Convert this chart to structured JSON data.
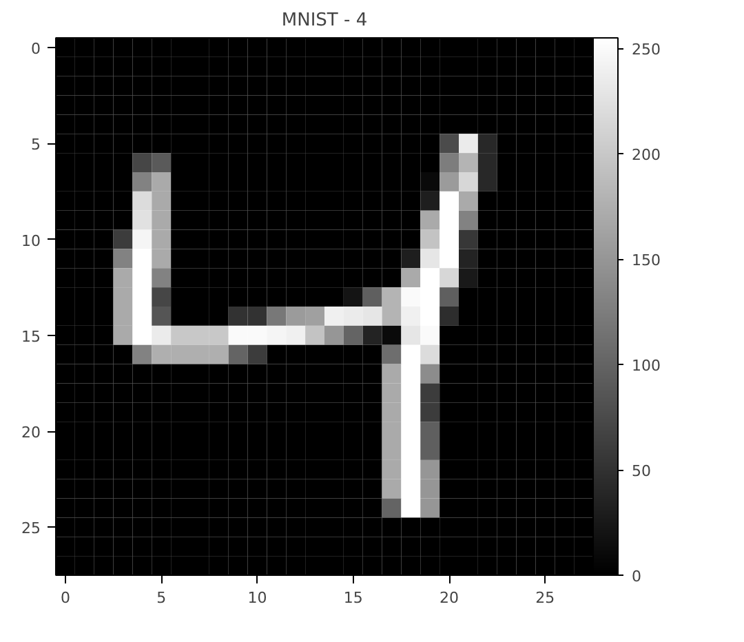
{
  "chart_data": {
    "type": "heatmap",
    "title": "MNIST - 4",
    "categories": [
      "0",
      null,
      null,
      null,
      null,
      "5",
      null,
      null,
      null,
      null,
      "10",
      null,
      null,
      null,
      null,
      "15",
      null,
      null,
      null,
      null,
      "20",
      null,
      null,
      null,
      null,
      "25",
      null,
      null
    ],
    "y_categories": [
      "0",
      null,
      null,
      null,
      null,
      "5",
      null,
      null,
      null,
      null,
      "10",
      null,
      null,
      null,
      null,
      "15",
      null,
      null,
      null,
      null,
      "20",
      null,
      null,
      null,
      null,
      "25",
      null,
      null
    ],
    "cells": [
      [
        0,
        0,
        0,
        0,
        0,
        0,
        0,
        0,
        0,
        0,
        0,
        0,
        0,
        0,
        0,
        0,
        0,
        0,
        0,
        0,
        0,
        0,
        0,
        0,
        0,
        0,
        0,
        0
      ],
      [
        0,
        0,
        0,
        0,
        0,
        0,
        0,
        0,
        0,
        0,
        0,
        0,
        0,
        0,
        0,
        0,
        0,
        0,
        0,
        0,
        0,
        0,
        0,
        0,
        0,
        0,
        0,
        0
      ],
      [
        0,
        0,
        0,
        0,
        0,
        0,
        0,
        0,
        0,
        0,
        0,
        0,
        0,
        0,
        0,
        0,
        0,
        0,
        0,
        0,
        0,
        0,
        0,
        0,
        0,
        0,
        0,
        0
      ],
      [
        0,
        0,
        0,
        0,
        0,
        0,
        0,
        0,
        0,
        0,
        0,
        0,
        0,
        0,
        0,
        0,
        0,
        0,
        0,
        0,
        0,
        0,
        0,
        0,
        0,
        0,
        0,
        0
      ],
      [
        0,
        0,
        0,
        0,
        0,
        0,
        0,
        0,
        0,
        0,
        0,
        0,
        0,
        0,
        0,
        0,
        0,
        0,
        0,
        0,
        0,
        0,
        0,
        0,
        0,
        0,
        0,
        0
      ],
      [
        0,
        0,
        0,
        0,
        0,
        0,
        0,
        0,
        0,
        0,
        0,
        0,
        0,
        0,
        0,
        0,
        0,
        0,
        0,
        0,
        75,
        235,
        40,
        0,
        0,
        0,
        0,
        0
      ],
      [
        0,
        0,
        0,
        0,
        70,
        90,
        0,
        0,
        0,
        0,
        0,
        0,
        0,
        0,
        0,
        0,
        0,
        0,
        0,
        0,
        125,
        180,
        40,
        0,
        0,
        0,
        0,
        0
      ],
      [
        0,
        0,
        0,
        0,
        130,
        170,
        0,
        0,
        0,
        0,
        0,
        0,
        0,
        0,
        0,
        0,
        0,
        0,
        0,
        10,
        155,
        215,
        40,
        0,
        0,
        0,
        0,
        0
      ],
      [
        0,
        0,
        0,
        0,
        220,
        170,
        0,
        0,
        0,
        0,
        0,
        0,
        0,
        0,
        0,
        0,
        0,
        0,
        0,
        30,
        255,
        170,
        0,
        0,
        0,
        0,
        0,
        0
      ],
      [
        0,
        0,
        0,
        0,
        225,
        170,
        0,
        0,
        0,
        0,
        0,
        0,
        0,
        0,
        0,
        0,
        0,
        0,
        0,
        170,
        255,
        130,
        0,
        0,
        0,
        0,
        0,
        0
      ],
      [
        0,
        0,
        0,
        60,
        245,
        170,
        0,
        0,
        0,
        0,
        0,
        0,
        0,
        0,
        0,
        0,
        0,
        0,
        0,
        195,
        255,
        55,
        0,
        0,
        0,
        0,
        0,
        0
      ],
      [
        0,
        0,
        0,
        130,
        255,
        170,
        0,
        0,
        0,
        0,
        0,
        0,
        0,
        0,
        0,
        0,
        0,
        0,
        30,
        230,
        255,
        35,
        0,
        0,
        0,
        0,
        0,
        0
      ],
      [
        0,
        0,
        0,
        170,
        255,
        130,
        0,
        0,
        0,
        0,
        0,
        0,
        0,
        0,
        0,
        0,
        0,
        0,
        170,
        255,
        215,
        25,
        0,
        0,
        0,
        0,
        0,
        0
      ],
      [
        0,
        0,
        0,
        170,
        255,
        70,
        0,
        0,
        0,
        0,
        0,
        0,
        0,
        0,
        0,
        20,
        95,
        180,
        250,
        255,
        95,
        0,
        0,
        0,
        0,
        0,
        0,
        0
      ],
      [
        0,
        0,
        0,
        170,
        255,
        85,
        0,
        0,
        0,
        50,
        50,
        120,
        155,
        160,
        240,
        235,
        230,
        180,
        240,
        255,
        45,
        0,
        0,
        0,
        0,
        0,
        0,
        0
      ],
      [
        0,
        0,
        0,
        170,
        255,
        235,
        200,
        200,
        200,
        250,
        250,
        245,
        240,
        195,
        150,
        100,
        35,
        10,
        230,
        250,
        0,
        0,
        0,
        0,
        0,
        0,
        0,
        0
      ],
      [
        0,
        0,
        0,
        0,
        130,
        175,
        175,
        175,
        175,
        100,
        60,
        0,
        0,
        0,
        0,
        0,
        0,
        110,
        255,
        220,
        0,
        0,
        0,
        0,
        0,
        0,
        0,
        0
      ],
      [
        0,
        0,
        0,
        0,
        0,
        0,
        0,
        0,
        0,
        0,
        0,
        0,
        0,
        0,
        0,
        0,
        0,
        170,
        255,
        140,
        0,
        0,
        0,
        0,
        0,
        0,
        0,
        0
      ],
      [
        0,
        0,
        0,
        0,
        0,
        0,
        0,
        0,
        0,
        0,
        0,
        0,
        0,
        0,
        0,
        0,
        0,
        170,
        255,
        60,
        0,
        0,
        0,
        0,
        0,
        0,
        0,
        0
      ],
      [
        0,
        0,
        0,
        0,
        0,
        0,
        0,
        0,
        0,
        0,
        0,
        0,
        0,
        0,
        0,
        0,
        0,
        170,
        255,
        60,
        0,
        0,
        0,
        0,
        0,
        0,
        0,
        0
      ],
      [
        0,
        0,
        0,
        0,
        0,
        0,
        0,
        0,
        0,
        0,
        0,
        0,
        0,
        0,
        0,
        0,
        0,
        170,
        255,
        95,
        0,
        0,
        0,
        0,
        0,
        0,
        0,
        0
      ],
      [
        0,
        0,
        0,
        0,
        0,
        0,
        0,
        0,
        0,
        0,
        0,
        0,
        0,
        0,
        0,
        0,
        0,
        170,
        255,
        95,
        0,
        0,
        0,
        0,
        0,
        0,
        0,
        0
      ],
      [
        0,
        0,
        0,
        0,
        0,
        0,
        0,
        0,
        0,
        0,
        0,
        0,
        0,
        0,
        0,
        0,
        0,
        170,
        255,
        150,
        0,
        0,
        0,
        0,
        0,
        0,
        0,
        0
      ],
      [
        0,
        0,
        0,
        0,
        0,
        0,
        0,
        0,
        0,
        0,
        0,
        0,
        0,
        0,
        0,
        0,
        0,
        170,
        255,
        150,
        0,
        0,
        0,
        0,
        0,
        0,
        0,
        0
      ],
      [
        0,
        0,
        0,
        0,
        0,
        0,
        0,
        0,
        0,
        0,
        0,
        0,
        0,
        0,
        0,
        0,
        0,
        100,
        255,
        150,
        0,
        0,
        0,
        0,
        0,
        0,
        0,
        0
      ],
      [
        0,
        0,
        0,
        0,
        0,
        0,
        0,
        0,
        0,
        0,
        0,
        0,
        0,
        0,
        0,
        0,
        0,
        0,
        0,
        0,
        0,
        0,
        0,
        0,
        0,
        0,
        0,
        0
      ],
      [
        0,
        0,
        0,
        0,
        0,
        0,
        0,
        0,
        0,
        0,
        0,
        0,
        0,
        0,
        0,
        0,
        0,
        0,
        0,
        0,
        0,
        0,
        0,
        0,
        0,
        0,
        0,
        0
      ],
      [
        0,
        0,
        0,
        0,
        0,
        0,
        0,
        0,
        0,
        0,
        0,
        0,
        0,
        0,
        0,
        0,
        0,
        0,
        0,
        0,
        0,
        0,
        0,
        0,
        0,
        0,
        0,
        0
      ]
    ],
    "clim": [
      0,
      255
    ],
    "cticks": [
      0,
      50,
      100,
      150,
      200,
      250
    ]
  }
}
